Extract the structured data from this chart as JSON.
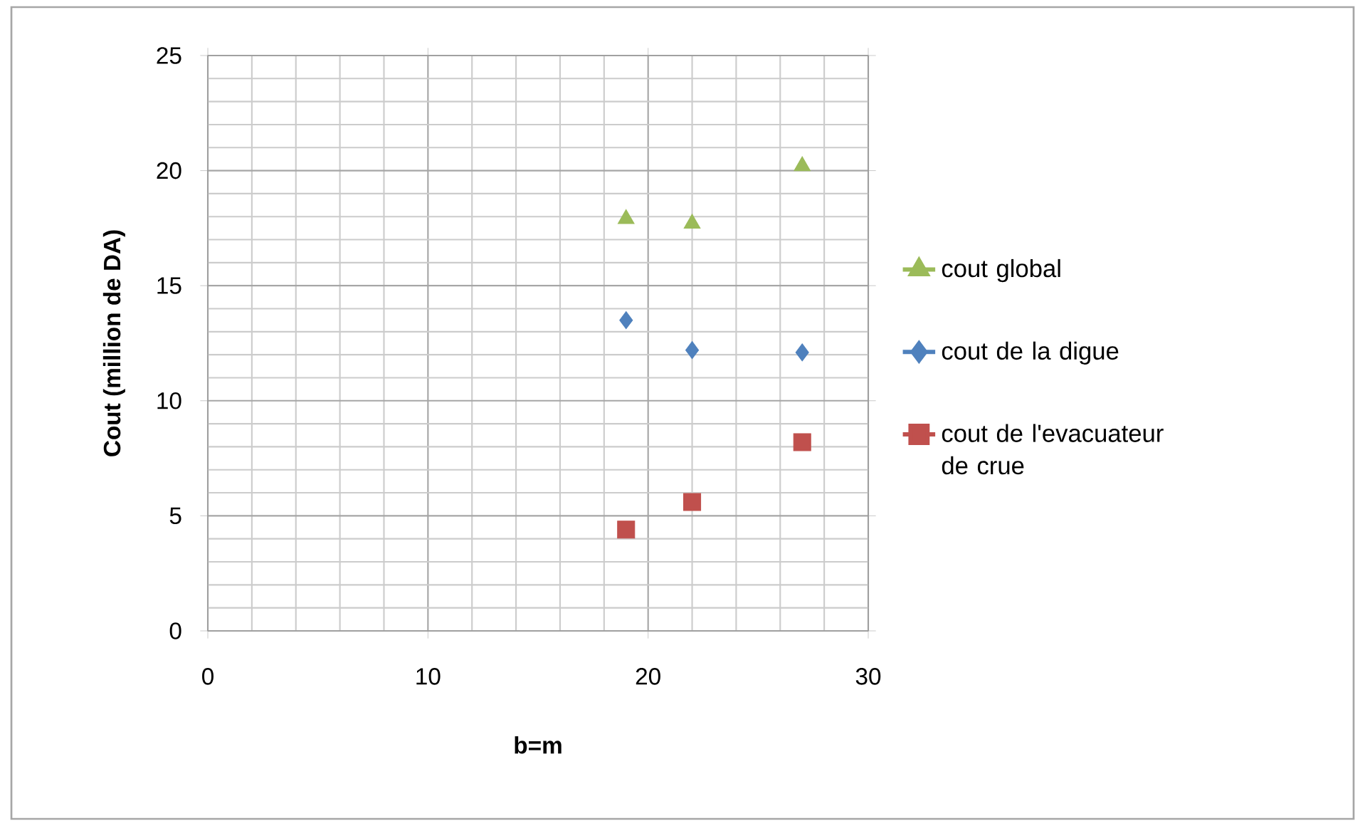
{
  "chart_data": {
    "type": "scatter",
    "xlabel": "b=m",
    "ylabel": "Cout (million de DA)",
    "xlim": [
      0,
      30
    ],
    "xticks": [
      0,
      10,
      20,
      30
    ],
    "ylim": [
      0,
      25
    ],
    "yticks": [
      0,
      5,
      10,
      15,
      20,
      25
    ],
    "grid": true,
    "legend": "right",
    "series": [
      {
        "name": "cout global",
        "color": "#9bbb59",
        "marker": "triangle",
        "x": [
          19,
          22,
          27
        ],
        "values": [
          17.9,
          17.7,
          20.2
        ]
      },
      {
        "name": "cout de la digue",
        "color": "#4f81bd",
        "marker": "diamond",
        "x": [
          19,
          22,
          27
        ],
        "values": [
          13.5,
          12.2,
          12.1
        ]
      },
      {
        "name": "cout de l'evacuateur de crue",
        "color": "#c0504d",
        "marker": "square",
        "x": [
          19,
          22,
          27
        ],
        "values": [
          4.4,
          5.6,
          8.2
        ]
      }
    ]
  }
}
